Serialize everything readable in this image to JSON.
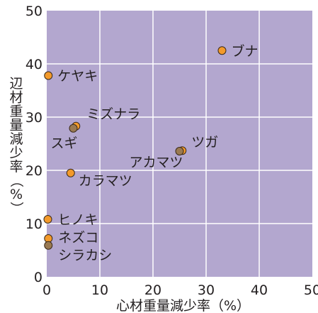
{
  "chart_data": {
    "type": "scatter",
    "title": "",
    "xlabel": "心材重量減少率（%）",
    "ylabel_chars": [
      "辺",
      "材",
      "重",
      "量",
      "減",
      "少",
      "率",
      "（",
      "%",
      "）"
    ],
    "xlim": [
      0,
      50
    ],
    "ylim": [
      0,
      50
    ],
    "xticks": [
      0,
      10,
      20,
      30,
      40,
      50
    ],
    "yticks": [
      0,
      10,
      20,
      30,
      40,
      50
    ],
    "grid": true,
    "colors": {
      "plot_bg": "#b3a7cf",
      "grid": "#ffffff",
      "point_orange": "#f39a2b",
      "point_brown": "#9a7a52",
      "point_edge": "#3a2a1a",
      "text": "#231f20"
    },
    "points": [
      {
        "label": "ブナ",
        "x": 33.0,
        "y": 42.5,
        "color": "orange"
      },
      {
        "label": "ケヤキ",
        "x": 0.3,
        "y": 37.8,
        "color": "orange"
      },
      {
        "label": "ミズナラ",
        "x": 5.5,
        "y": 28.3,
        "color": "orange"
      },
      {
        "label": "スギ",
        "x": 5.0,
        "y": 27.9,
        "color": "brown"
      },
      {
        "label": "ツガ",
        "x": 25.5,
        "y": 23.7,
        "color": "orange"
      },
      {
        "label": "アカマツ",
        "x": 25.0,
        "y": 23.6,
        "color": "brown"
      },
      {
        "label": "カラマツ",
        "x": 4.5,
        "y": 19.5,
        "color": "orange"
      },
      {
        "label": "ヒノキ",
        "x": 0.2,
        "y": 10.8,
        "color": "orange"
      },
      {
        "label": "ネズコ",
        "x": 0.3,
        "y": 7.2,
        "color": "orange"
      },
      {
        "label": "シラカシ",
        "x": 0.3,
        "y": 5.9,
        "color": "brown"
      }
    ]
  }
}
